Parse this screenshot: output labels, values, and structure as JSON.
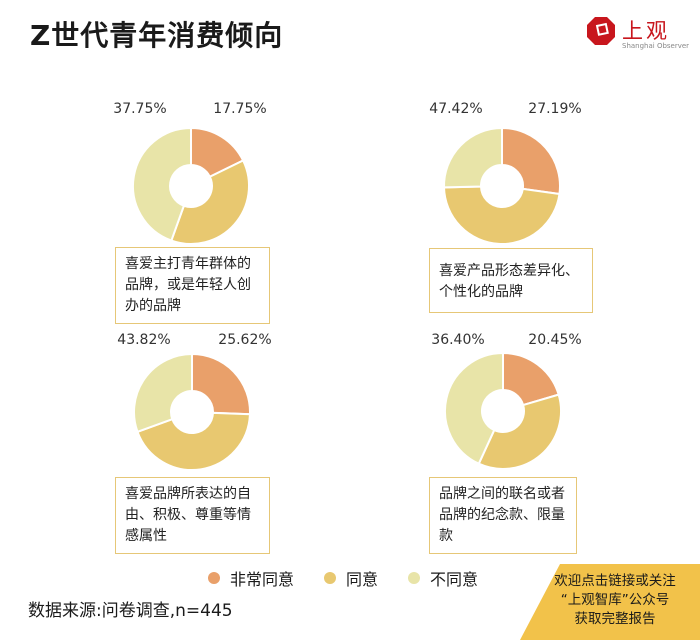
{
  "title": "Z世代青年消费倾向",
  "logo": {
    "name": "上观",
    "subtitle": "Shanghai Observer",
    "color": "#c8161d"
  },
  "legend": [
    {
      "label": "非常同意",
      "color": "#e9a06a"
    },
    {
      "label": "同意",
      "color": "#e8c870"
    },
    {
      "label": "不同意",
      "color": "#e8e4a8"
    }
  ],
  "footnote": "数据来源:问卷调查,n=445",
  "cta": {
    "line1": "欢迎点击链接或关注",
    "line2": "“上观智库”公众号",
    "line3": "获取完整报告"
  },
  "chart_data": [
    {
      "type": "pie",
      "caption": "喜爱主打青年群体的品牌，或是年轻人创办的品牌",
      "categories": [
        "非常同意",
        "同意",
        "不同意"
      ],
      "values": [
        17.75,
        37.75,
        44.5
      ],
      "data_labels": [
        "17.75%",
        "37.75%",
        ""
      ]
    },
    {
      "type": "pie",
      "caption": "喜爱产品形态差异化、个性化的品牌",
      "categories": [
        "非常同意",
        "同意",
        "不同意"
      ],
      "values": [
        27.19,
        47.42,
        25.39
      ],
      "data_labels": [
        "27.19%",
        "47.42%",
        ""
      ]
    },
    {
      "type": "pie",
      "caption": "喜爱品牌所表达的自由、积极、尊重等情感属性",
      "categories": [
        "非常同意",
        "同意",
        "不同意"
      ],
      "values": [
        25.62,
        43.82,
        30.56
      ],
      "data_labels": [
        "25.62%",
        "43.82%",
        ""
      ]
    },
    {
      "type": "pie",
      "caption": "品牌之间的联名或者品牌的纪念款、限量款",
      "categories": [
        "非常同意",
        "同意",
        "不同意"
      ],
      "values": [
        20.45,
        36.4,
        43.15
      ],
      "data_labels": [
        "20.45%",
        "36.40%",
        ""
      ]
    }
  ]
}
